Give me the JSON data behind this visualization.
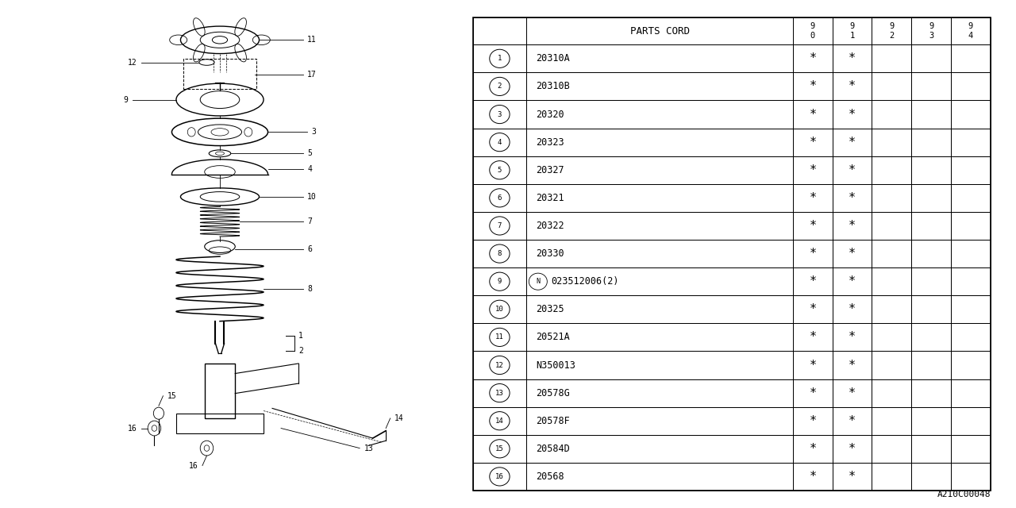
{
  "bg_color": "#ffffff",
  "watermark": "A210C00048",
  "table": {
    "header_col": "PARTS CORD",
    "year_cols": [
      "9\n0",
      "9\n1",
      "9\n2",
      "9\n3",
      "9\n4"
    ],
    "rows": [
      {
        "num": "1",
        "code": "20310A",
        "years": [
          1,
          1,
          0,
          0,
          0
        ]
      },
      {
        "num": "2",
        "code": "20310B",
        "years": [
          1,
          1,
          0,
          0,
          0
        ]
      },
      {
        "num": "3",
        "code": "20320",
        "years": [
          1,
          1,
          0,
          0,
          0
        ]
      },
      {
        "num": "4",
        "code": "20323",
        "years": [
          1,
          1,
          0,
          0,
          0
        ]
      },
      {
        "num": "5",
        "code": "20327",
        "years": [
          1,
          1,
          0,
          0,
          0
        ]
      },
      {
        "num": "6",
        "code": "20321",
        "years": [
          1,
          1,
          0,
          0,
          0
        ]
      },
      {
        "num": "7",
        "code": "20322",
        "years": [
          1,
          1,
          0,
          0,
          0
        ]
      },
      {
        "num": "8",
        "code": "20330",
        "years": [
          1,
          1,
          0,
          0,
          0
        ]
      },
      {
        "num": "9",
        "code": "N023512006(2)",
        "years": [
          1,
          1,
          0,
          0,
          0
        ]
      },
      {
        "num": "10",
        "code": "20325",
        "years": [
          1,
          1,
          0,
          0,
          0
        ]
      },
      {
        "num": "11",
        "code": "20521A",
        "years": [
          1,
          1,
          0,
          0,
          0
        ]
      },
      {
        "num": "12",
        "code": "N350013",
        "years": [
          1,
          1,
          0,
          0,
          0
        ]
      },
      {
        "num": "13",
        "code": "20578G",
        "years": [
          1,
          1,
          0,
          0,
          0
        ]
      },
      {
        "num": "14",
        "code": "20578F",
        "years": [
          1,
          1,
          0,
          0,
          0
        ]
      },
      {
        "num": "15",
        "code": "20584D",
        "years": [
          1,
          1,
          0,
          0,
          0
        ]
      },
      {
        "num": "16",
        "code": "20568",
        "years": [
          1,
          1,
          0,
          0,
          0
        ]
      }
    ]
  }
}
